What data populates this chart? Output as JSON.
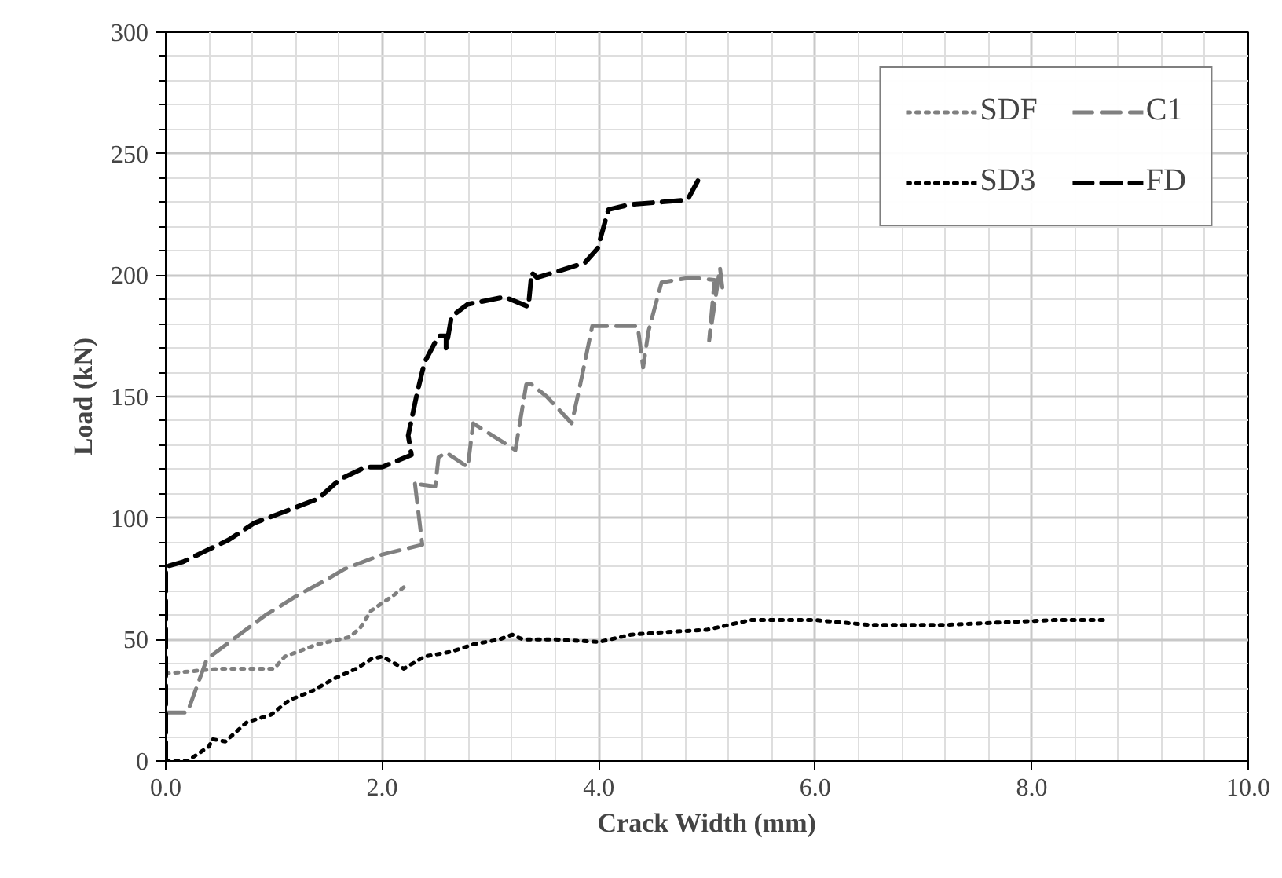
{
  "chart_data": {
    "type": "line",
    "xlabel": "Crack Width (mm)",
    "ylabel": "Load (kN)",
    "xlim": [
      0,
      10
    ],
    "ylim": [
      0,
      300
    ],
    "xticks": [
      {
        "value": 0,
        "label": "0.0"
      },
      {
        "value": 2,
        "label": "2.0"
      },
      {
        "value": 4,
        "label": "4.0"
      },
      {
        "value": 6,
        "label": "6.0"
      },
      {
        "value": 8,
        "label": "8.0"
      },
      {
        "value": 10,
        "label": "10.0"
      }
    ],
    "yticks": [
      0,
      50,
      100,
      150,
      200,
      250,
      300
    ],
    "grid": true,
    "legend": "top right",
    "marker": "none",
    "series": [
      {
        "name": "SDF",
        "color": "#808080",
        "line_style": "dotted",
        "x": [
          0,
          0.5,
          1.0,
          1.1,
          1.4,
          1.7,
          1.8,
          1.9,
          2.1,
          2.24
        ],
        "values": [
          36,
          38,
          38,
          43,
          48,
          51,
          55,
          62,
          68,
          73
        ]
      },
      {
        "name": "SD3",
        "color": "#000000",
        "line_style": "dotted",
        "x": [
          0,
          0.2,
          0.3,
          0.4,
          0.43,
          0.55,
          0.75,
          0.97,
          1.14,
          1.36,
          1.56,
          1.76,
          1.9,
          2.0,
          2.2,
          2.39,
          2.64,
          2.84,
          3.08,
          3.2,
          3.3,
          3.6,
          4.0,
          4.3,
          4.6,
          5.0,
          5.2,
          5.4,
          6.0,
          6.5,
          7.2,
          8.2,
          8.7
        ],
        "values": [
          0,
          0,
          3,
          6,
          9,
          8,
          16,
          19,
          25,
          29,
          34,
          38,
          42,
          43,
          38,
          43,
          45,
          48,
          50,
          52,
          50,
          50,
          49,
          52,
          53,
          54,
          56,
          58,
          58,
          56,
          56,
          58,
          58
        ]
      },
      {
        "name": "C1",
        "color": "#808080",
        "line_style": "dashed",
        "x": [
          0,
          0.2,
          0.38,
          0.92,
          1.21,
          1.5,
          1.65,
          2.0,
          2.37,
          2.3,
          2.32,
          2.49,
          2.52,
          2.59,
          2.79,
          2.84,
          3.23,
          3.33,
          3.38,
          3.52,
          3.75,
          3.82,
          3.94,
          4.36,
          4.41,
          4.46,
          4.58,
          4.85,
          5.07,
          5.02,
          5.12,
          5.15
        ],
        "values": [
          20,
          20,
          42,
          60,
          68,
          75,
          79,
          85,
          89,
          115,
          114,
          113,
          125,
          127,
          121,
          139,
          128,
          155,
          155,
          150,
          139,
          153,
          179,
          179,
          162,
          177,
          197,
          199,
          198,
          173,
          203,
          192
        ]
      },
      {
        "name": "FD",
        "color": "#000000",
        "line_style": "dashed",
        "x": [
          0,
          0,
          0.16,
          0.58,
          0.82,
          1.06,
          1.41,
          1.61,
          1.85,
          2.0,
          2.27,
          2.24,
          2.32,
          2.39,
          2.52,
          2.59,
          2.59,
          2.64,
          2.79,
          3.13,
          3.35,
          3.38,
          3.43,
          3.87,
          3.99,
          4.09,
          4.28,
          4.82,
          4.93
        ],
        "values": [
          0,
          80,
          82,
          91,
          98,
          102,
          108,
          116,
          121,
          121,
          126,
          134,
          151,
          164,
          175,
          175,
          170,
          183,
          188,
          191,
          187,
          201,
          199,
          205,
          211,
          227,
          229,
          231,
          240
        ]
      }
    ]
  }
}
